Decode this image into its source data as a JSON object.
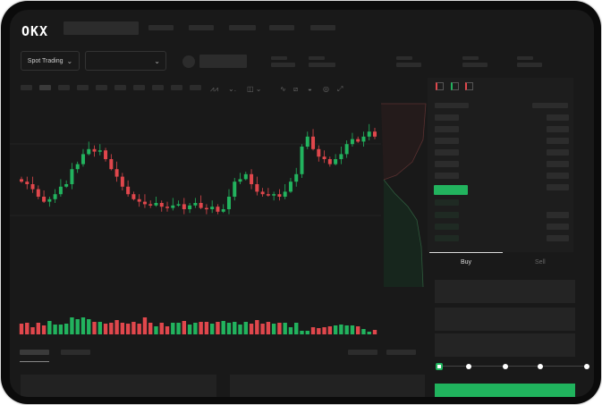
{
  "header": {
    "brand": "OKX",
    "market_selector": "Spot Trading"
  },
  "trade_panel": {
    "buy_tab": "Buy",
    "sell_tab": "Sell",
    "leverage_steps": 5,
    "leverage_selected": 0
  },
  "icons": [
    "chevron-down-icon",
    "indicator-icon",
    "draw-line-icon",
    "ruler-icon",
    "camera-icon",
    "settings-icon",
    "fullscreen-icon",
    "orderbook-both-icon",
    "orderbook-bids-icon",
    "orderbook-asks-icon"
  ],
  "colors": {
    "up": "#22b35e",
    "down": "#e0474c",
    "accent": "#20b35d",
    "background": "#191919"
  },
  "chart_data": {
    "type": "candlestick",
    "closes": [
      52,
      50,
      46,
      40,
      36,
      38,
      42,
      48,
      50,
      62,
      66,
      74,
      78,
      76,
      77,
      70,
      62,
      56,
      48,
      42,
      38,
      36,
      34,
      33,
      35,
      32,
      31,
      33,
      34,
      30,
      33,
      35,
      31,
      30,
      32,
      28,
      30,
      40,
      52,
      54,
      58,
      50,
      44,
      42,
      41,
      42,
      40,
      44,
      52,
      58,
      80,
      88,
      78,
      72,
      70,
      66,
      70,
      74,
      82,
      86,
      84,
      88,
      92,
      88
    ],
    "volumes": [
      12,
      13,
      8,
      13,
      10,
      15,
      11,
      11,
      12,
      19,
      17,
      19,
      17,
      14,
      14,
      12,
      13,
      16,
      13,
      12,
      14,
      12,
      19,
      13,
      9,
      13,
      9,
      13,
      13,
      15,
      11,
      13,
      14,
      14,
      12,
      14,
      15,
      13,
      14,
      11,
      14,
      12,
      16,
      12,
      14,
      12,
      13,
      13,
      8,
      13,
      4,
      4,
      8,
      7,
      8,
      9,
      10,
      11,
      10,
      10,
      9,
      6,
      3,
      5
    ],
    "ylim": [
      0,
      110
    ]
  }
}
